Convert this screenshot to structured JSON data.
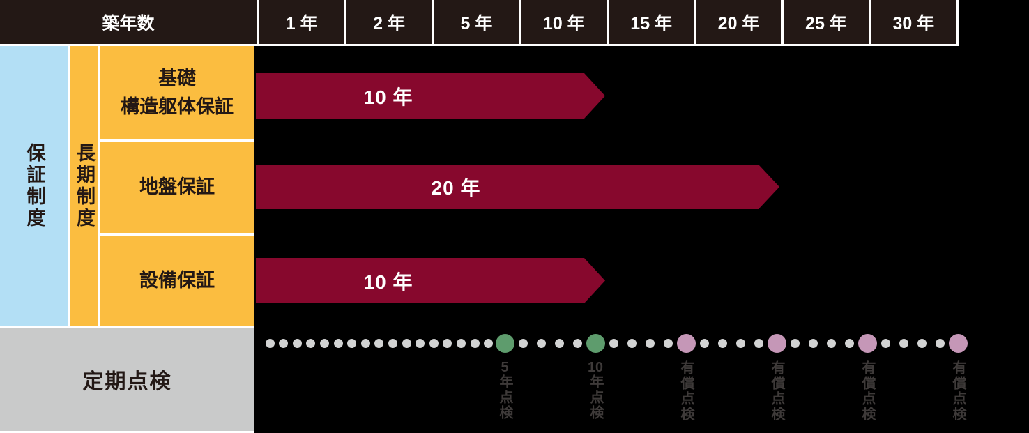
{
  "header": {
    "row_label": "築年数",
    "columns": [
      "1 年",
      "2 年",
      "5 年",
      "10 年",
      "15 年",
      "20 年",
      "25 年",
      "30 年"
    ]
  },
  "sidebar": {
    "group_label": "保証制度",
    "subgroup_label": "長期制度",
    "rows": [
      "基礎\n構造躯体保証",
      "地盤保証",
      "設備保証"
    ]
  },
  "timeline": {
    "bars": [
      {
        "name": "基礎構造躯体保証",
        "duration_label": "10 年",
        "duration_years": 10
      },
      {
        "name": "地盤保証",
        "duration_label": "20 年",
        "duration_years": 20
      },
      {
        "name": "設備保証",
        "duration_label": "10 年",
        "duration_years": 10
      }
    ]
  },
  "inspection": {
    "label": "定期点検",
    "markers": [
      {
        "label": "5年点検",
        "type": "free",
        "year": 5
      },
      {
        "label": "10年点検",
        "type": "free",
        "year": 10
      },
      {
        "label": "有償点検",
        "type": "paid",
        "year": 15
      },
      {
        "label": "有償点検",
        "type": "paid",
        "year": 20
      },
      {
        "label": "有償点検",
        "type": "paid",
        "year": 25
      },
      {
        "label": "有償点検",
        "type": "paid",
        "year": 30
      }
    ]
  },
  "colors": {
    "background": "#000000",
    "header_dark": "#231815",
    "text_dark": "#231815",
    "crimson": "#87082D",
    "orange": "#FBBD40",
    "blue": "#B3DFF5",
    "green": "#5E9C6D",
    "pink": "#C597B7",
    "dot_gray": "#D2D3D3",
    "cell_gray": "#C9CACA",
    "marker_text": "#3E3A39"
  }
}
